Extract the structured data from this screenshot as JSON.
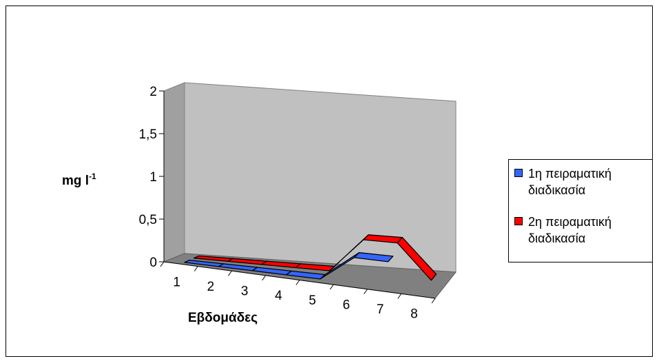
{
  "chart_data": {
    "type": "line",
    "style": "3d-ribbon",
    "categories": [
      "1",
      "2",
      "3",
      "4",
      "5",
      "6",
      "7",
      "8"
    ],
    "series": [
      {
        "name": "1η πειραματική διαδικασία",
        "color": "#3366ff",
        "values": [
          0,
          0,
          0,
          0,
          0,
          0.3,
          0.3,
          null
        ]
      },
      {
        "name": "2η πειραματική διαδικασία",
        "color": "#ff0000",
        "values": [
          0,
          0,
          0,
          0,
          0,
          0.4,
          0.4,
          0
        ]
      }
    ],
    "y_ticks": [
      "0",
      "0,5",
      "1",
      "1,5",
      "2"
    ],
    "ylim": [
      0,
      2
    ],
    "xlabel": "Εβδομάδες",
    "ylabel": "mg l",
    "ylabel_sup": "-1",
    "legend_position": "right",
    "colors": {
      "back_wall": "#c0c0c0",
      "floor": "#808080"
    }
  }
}
